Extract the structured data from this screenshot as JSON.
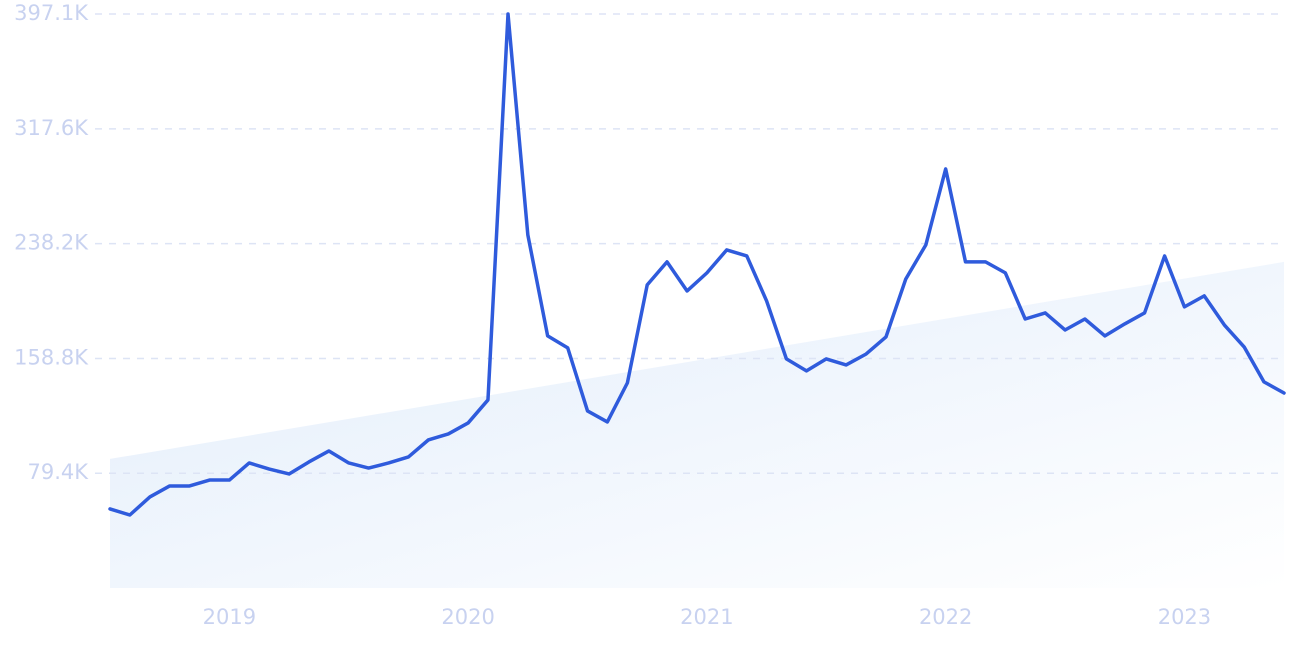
{
  "chart_data": {
    "type": "line",
    "x": [
      2018.5,
      2018.583,
      2018.667,
      2018.75,
      2018.833,
      2018.917,
      2019,
      2019.083,
      2019.167,
      2019.25,
      2019.333,
      2019.417,
      2019.5,
      2019.583,
      2019.667,
      2019.75,
      2019.833,
      2019.917,
      2020,
      2020.083,
      2020.167,
      2020.25,
      2020.333,
      2020.417,
      2020.5,
      2020.583,
      2020.667,
      2020.75,
      2020.833,
      2020.917,
      2021,
      2021.083,
      2021.167,
      2021.25,
      2021.333,
      2021.417,
      2021.5,
      2021.583,
      2021.667,
      2021.75,
      2021.833,
      2021.917,
      2022,
      2022.083,
      2022.167,
      2022.25,
      2022.333,
      2022.417,
      2022.5,
      2022.583,
      2022.667,
      2022.75,
      2022.833,
      2022.917,
      2023,
      2023.083,
      2023.167,
      2023.25,
      2023.333,
      2023.417
    ],
    "values": [
      54700,
      50500,
      63000,
      70600,
      70600,
      74700,
      74700,
      86500,
      82300,
      78900,
      87200,
      94800,
      86500,
      83000,
      86500,
      90700,
      102400,
      106600,
      114200,
      130100,
      397100,
      244300,
      174400,
      166100,
      122500,
      114900,
      141900,
      209700,
      225600,
      205500,
      218000,
      233900,
      229700,
      198600,
      158500,
      150200,
      158500,
      154300,
      161900,
      173700,
      213800,
      237400,
      289900,
      225600,
      225600,
      218000,
      186100,
      190300,
      178500,
      186100,
      174400,
      182700,
      190300,
      229700,
      194500,
      202100,
      182000,
      166800,
      142600,
      134900
    ],
    "color": "#2f5bdc",
    "trend": {
      "values": [
        89300,
        225600
      ],
      "color": "#e2edfb"
    },
    "xlim": [
      2018.5,
      2023.417
    ],
    "xticks": [
      2019,
      2020,
      2021,
      2022,
      2023
    ],
    "ylim": [
      0,
      397100
    ],
    "yticks": [
      {
        "value": 79400,
        "label": "79.4K"
      },
      {
        "value": 158800,
        "label": "158.8K"
      },
      {
        "value": 238200,
        "label": "238.2K"
      },
      {
        "value": 317600,
        "label": "317.6K"
      },
      {
        "value": 397100,
        "label": "397.1K"
      }
    ],
    "grid": true
  }
}
